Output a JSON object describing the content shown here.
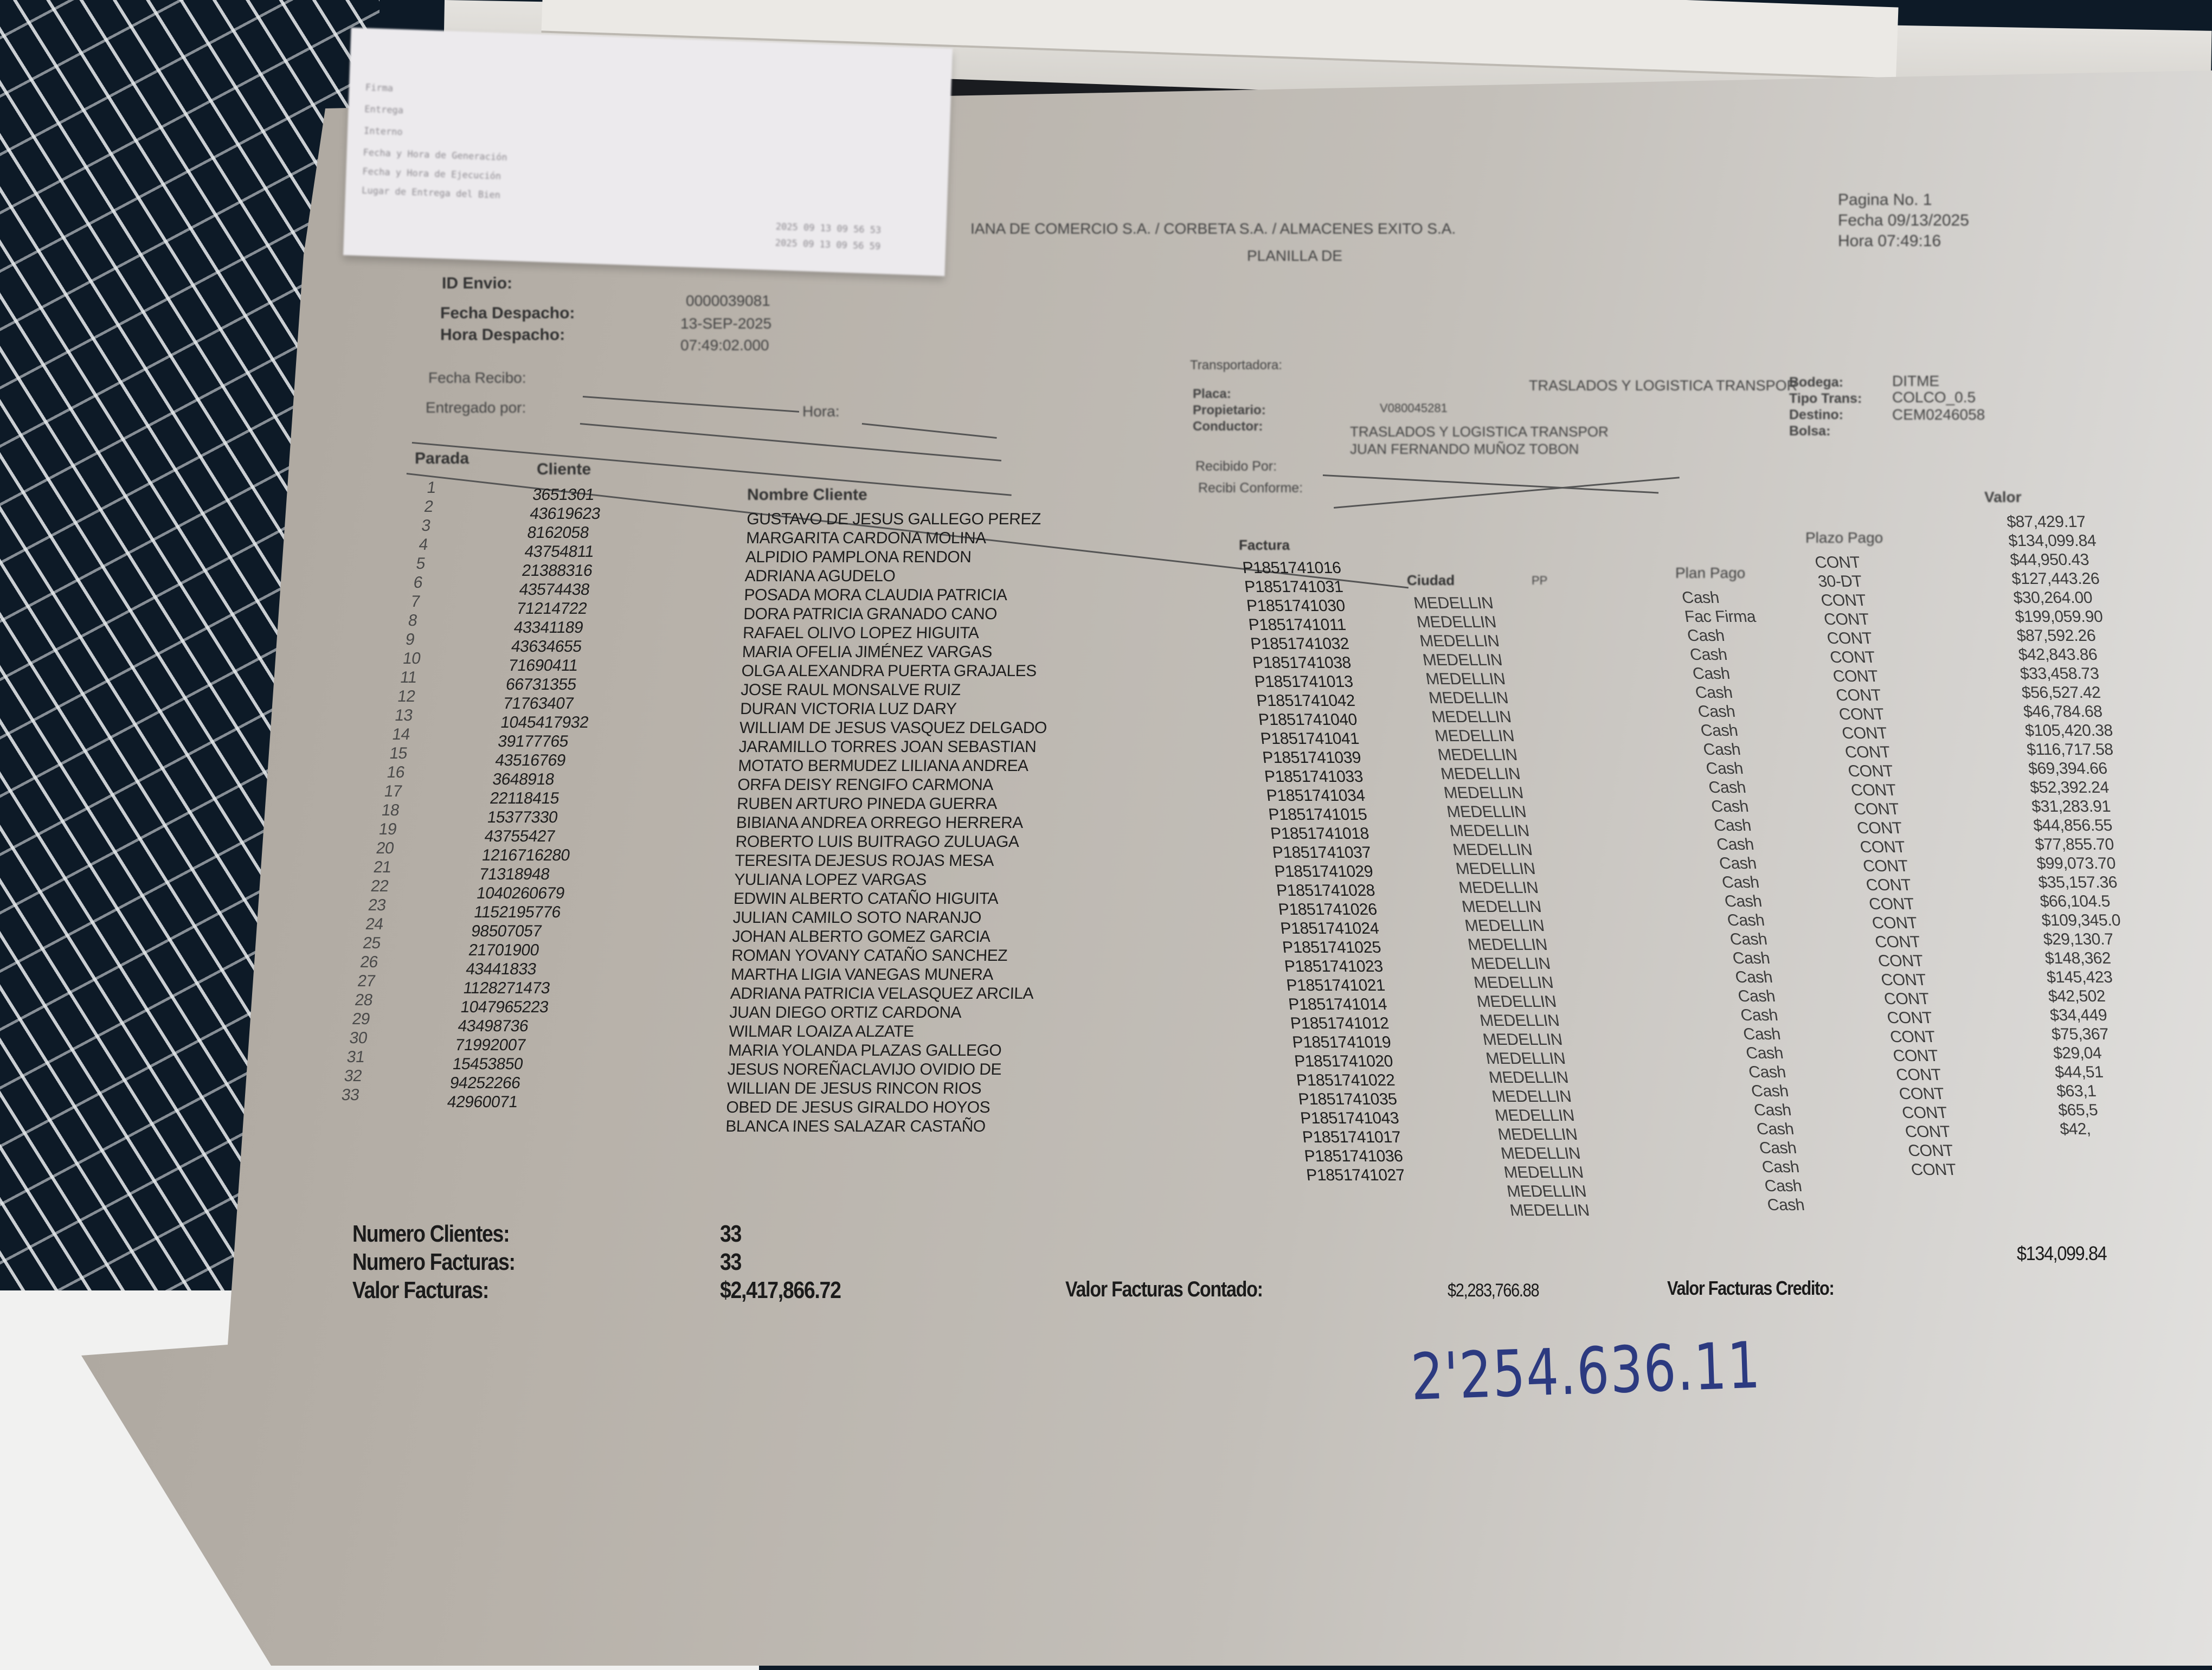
{
  "receipt": {
    "lines_left": [
      "Firma",
      "Entrega",
      "Interno",
      "Fecha y Hora de Generación",
      "Fecha y Hora de Ejecución",
      "Lugar de Entrega del Bien"
    ],
    "lines_right": [
      "2025 09 13 09 56 53",
      "2025 09 13 09 56 59"
    ]
  },
  "header": {
    "company_title": "IANA DE COMERCIO S.A. / CORBETA S.A. / ALMACENES EXITO S.A.",
    "subtitle": "PLANILLA DE",
    "pagina_label": "Pagina No.",
    "pagina_value": "1",
    "fecha_label": "Fecha",
    "fecha_value": "09/13/2025",
    "hora_label": "Hora",
    "hora_value": "07:49:16"
  },
  "dispatch": {
    "id_envio_label": "ID Envio:",
    "id_envio_value": "0000039081",
    "fecha_despacho_label": "Fecha Despacho:",
    "fecha_despacho_value": "13-SEP-2025",
    "hora_despacho_label": "Hora Despacho:",
    "hora_despacho_value": "07:49:02.000",
    "fecha_recibo_label": "Fecha Recibo:",
    "entregado_por_label": "Entregado por:",
    "hora_label": "Hora:"
  },
  "transport": {
    "transportadora_label": "Transportadora:",
    "transportadora_code": "V080045281",
    "transportadora_name": "TRASLADOS Y LOGISTICA TRANSPOR",
    "placa_label": "Placa:",
    "propietario_label": "Propietario:",
    "conductor_label": "Conductor:",
    "propietario_value": "TRASLADOS Y LOGISTICA TRANSPOR",
    "conductor_value": "JUAN FERNANDO MUÑOZ TOBON",
    "recibido_por_label": "Recibido Por:",
    "recibi_conforme_label": "Recibi Conforme:",
    "bodega_label": "Bodega:",
    "tipo_trans_label": "Tipo Trans:",
    "destino_label": "Destino:",
    "bolsa_label": "Bolsa:",
    "bodega_value": "DITME",
    "tipo_trans_value": "COLCO_0.5",
    "destino_value": "CEM0246058"
  },
  "table": {
    "headers": {
      "parada": "Parada",
      "cliente": "Cliente",
      "nombre": "Nombre Cliente",
      "factura": "Factura",
      "ciudad": "Ciudad",
      "pp": "PP",
      "plan_pago": "Plan Pago",
      "plazo_pago": "Plazo Pago",
      "valor": "Valor"
    },
    "parada": [
      "1",
      "2",
      "3",
      "4",
      "5",
      "6",
      "7",
      "8",
      "9",
      "10",
      "11",
      "12",
      "13",
      "14",
      "15",
      "16",
      "17",
      "18",
      "19",
      "20",
      "21",
      "22",
      "23",
      "24",
      "25",
      "26",
      "27",
      "28",
      "29",
      "30",
      "31",
      "32",
      "33"
    ],
    "cliente": [
      "3651301",
      "43619623",
      "8162058",
      "43754811",
      "21388316",
      "43574438",
      "71214722",
      "43341189",
      "43634655",
      "71690411",
      "66731355",
      "71763407",
      "1045417932",
      "39177765",
      "43516769",
      "3648918",
      "22118415",
      "15377330",
      "43755427",
      "1216716280",
      "71318948",
      "1040260679",
      "1152195776",
      "98507057",
      "21701900",
      "43441833",
      "1128271473",
      "1047965223",
      "43498736",
      "71992007",
      "15453850",
      "94252266",
      "42960071"
    ],
    "nombre": [
      "GUSTAVO DE JESUS GALLEGO PEREZ",
      "MARGARITA CARDONA MOLINA",
      "ALPIDIO PAMPLONA RENDON",
      "ADRIANA AGUDELO",
      "POSADA MORA CLAUDIA PATRICIA",
      "DORA PATRICIA GRANADO CANO",
      "RAFAEL OLIVO LOPEZ HIGUITA",
      "MARIA OFELIA JIMÉNEZ VARGAS",
      "OLGA ALEXANDRA PUERTA GRAJALES",
      "JOSE RAUL MONSALVE RUIZ",
      "DURAN VICTORIA LUZ DARY",
      "WILLIAM DE JESUS VASQUEZ DELGADO",
      "JARAMILLO TORRES JOAN SEBASTIAN",
      "MOTATO BERMUDEZ LILIANA ANDREA",
      "ORFA DEISY RENGIFO CARMONA",
      "RUBEN ARTURO PINEDA GUERRA",
      "BIBIANA ANDREA ORREGO HERRERA",
      "ROBERTO LUIS BUITRAGO ZULUAGA",
      "TERESITA DEJESUS ROJAS MESA",
      "YULIANA LOPEZ VARGAS",
      "EDWIN ALBERTO CATAÑO HIGUITA",
      "JULIAN CAMILO SOTO NARANJO",
      "JOHAN ALBERTO GOMEZ GARCIA",
      "ROMAN YOVANY CATAÑO SANCHEZ",
      "MARTHA LIGIA VANEGAS MUNERA",
      "ADRIANA PATRICIA VELASQUEZ ARCILA",
      "JUAN DIEGO ORTIZ CARDONA",
      "WILMAR LOAIZA ALZATE",
      "MARIA YOLANDA  PLAZAS GALLEGO",
      "JESUS NOREÑACLAVIJO OVIDIO DE",
      "WILLIAN DE JESUS RINCON RIOS",
      "OBED DE JESUS GIRALDO HOYOS",
      "BLANCA INES SALAZAR CASTAÑO"
    ],
    "factura": [
      "P1851741016",
      "P1851741031",
      "P1851741030",
      "P1851741011",
      "P1851741032",
      "P1851741038",
      "P1851741013",
      "P1851741042",
      "P1851741040",
      "P1851741041",
      "P1851741039",
      "P1851741033",
      "P1851741034",
      "P1851741015",
      "P1851741018",
      "P1851741037",
      "P1851741029",
      "P1851741028",
      "P1851741026",
      "P1851741024",
      "P1851741025",
      "P1851741023",
      "P1851741021",
      "P1851741014",
      "P1851741012",
      "P1851741019",
      "P1851741020",
      "P1851741022",
      "P1851741035",
      "P1851741043",
      "P1851741017",
      "P1851741036",
      "P1851741027"
    ],
    "ciudad": [
      "MEDELLIN",
      "MEDELLIN",
      "MEDELLIN",
      "MEDELLIN",
      "MEDELLIN",
      "MEDELLIN",
      "MEDELLIN",
      "MEDELLIN",
      "MEDELLIN",
      "MEDELLIN",
      "MEDELLIN",
      "MEDELLIN",
      "MEDELLIN",
      "MEDELLIN",
      "MEDELLIN",
      "MEDELLIN",
      "MEDELLIN",
      "MEDELLIN",
      "MEDELLIN",
      "MEDELLIN",
      "MEDELLIN",
      "MEDELLIN",
      "MEDELLIN",
      "MEDELLIN",
      "MEDELLIN",
      "MEDELLIN",
      "MEDELLIN",
      "MEDELLIN",
      "MEDELLIN",
      "MEDELLIN",
      "MEDELLIN",
      "MEDELLIN",
      "MEDELLIN"
    ],
    "plan_pago": [
      "Cash",
      "Fac Firma",
      "Cash",
      "Cash",
      "Cash",
      "Cash",
      "Cash",
      "Cash",
      "Cash",
      "Cash",
      "Cash",
      "Cash",
      "Cash",
      "Cash",
      "Cash",
      "Cash",
      "Cash",
      "Cash",
      "Cash",
      "Cash",
      "Cash",
      "Cash",
      "Cash",
      "Cash",
      "Cash",
      "Cash",
      "Cash",
      "Cash",
      "Cash",
      "Cash",
      "Cash",
      "Cash",
      "Cash"
    ],
    "plazo_pago": [
      "CONT",
      "30-DT",
      "CONT",
      "CONT",
      "CONT",
      "CONT",
      "CONT",
      "CONT",
      "CONT",
      "CONT",
      "CONT",
      "CONT",
      "CONT",
      "CONT",
      "CONT",
      "CONT",
      "CONT",
      "CONT",
      "CONT",
      "CONT",
      "CONT",
      "CONT",
      "CONT",
      "CONT",
      "CONT",
      "CONT",
      "CONT",
      "CONT",
      "CONT",
      "CONT",
      "CONT",
      "CONT",
      "CONT"
    ],
    "valor": [
      "$87,429.17",
      "$134,099.84",
      "$44,950.43",
      "$127,443.26",
      "$30,264.00",
      "$199,059.90",
      "$87,592.26",
      "$42,843.86",
      "$33,458.73",
      "$56,527.42",
      "$46,784.68",
      "$105,420.38",
      "$116,717.58",
      "$69,394.66",
      "$52,392.24",
      "$31,283.91",
      "$44,856.55",
      "$77,855.70",
      "$99,073.70",
      "$35,157.36",
      "$66,104.5",
      "$109,345.0",
      "$29,130.7",
      "$148,362",
      "$145,423",
      "$42,502",
      "$34,449",
      "$75,367",
      "$29,04",
      "$44,51",
      "$63,1",
      "$65,5",
      "$42,"
    ]
  },
  "summary": {
    "numero_clientes_label": "Numero Clientes:",
    "numero_clientes_value": "33",
    "numero_facturas_label": "Numero Facturas:",
    "numero_facturas_value": "33",
    "valor_facturas_label": "Valor Facturas:",
    "valor_facturas_value": "$2,417,866.72",
    "contado_label": "Valor Facturas Contado:",
    "contado_value": "$2,283,766.88",
    "credito_label": "Valor Facturas Credito:",
    "credito_value": "$134,099.84"
  },
  "handwritten_note": "2'254.636.11",
  "colors": {
    "paper": "#b7b1a9",
    "ink": "#1e1e1e",
    "handwriting": "#2c3a80",
    "fabric": "#0d1a27"
  }
}
